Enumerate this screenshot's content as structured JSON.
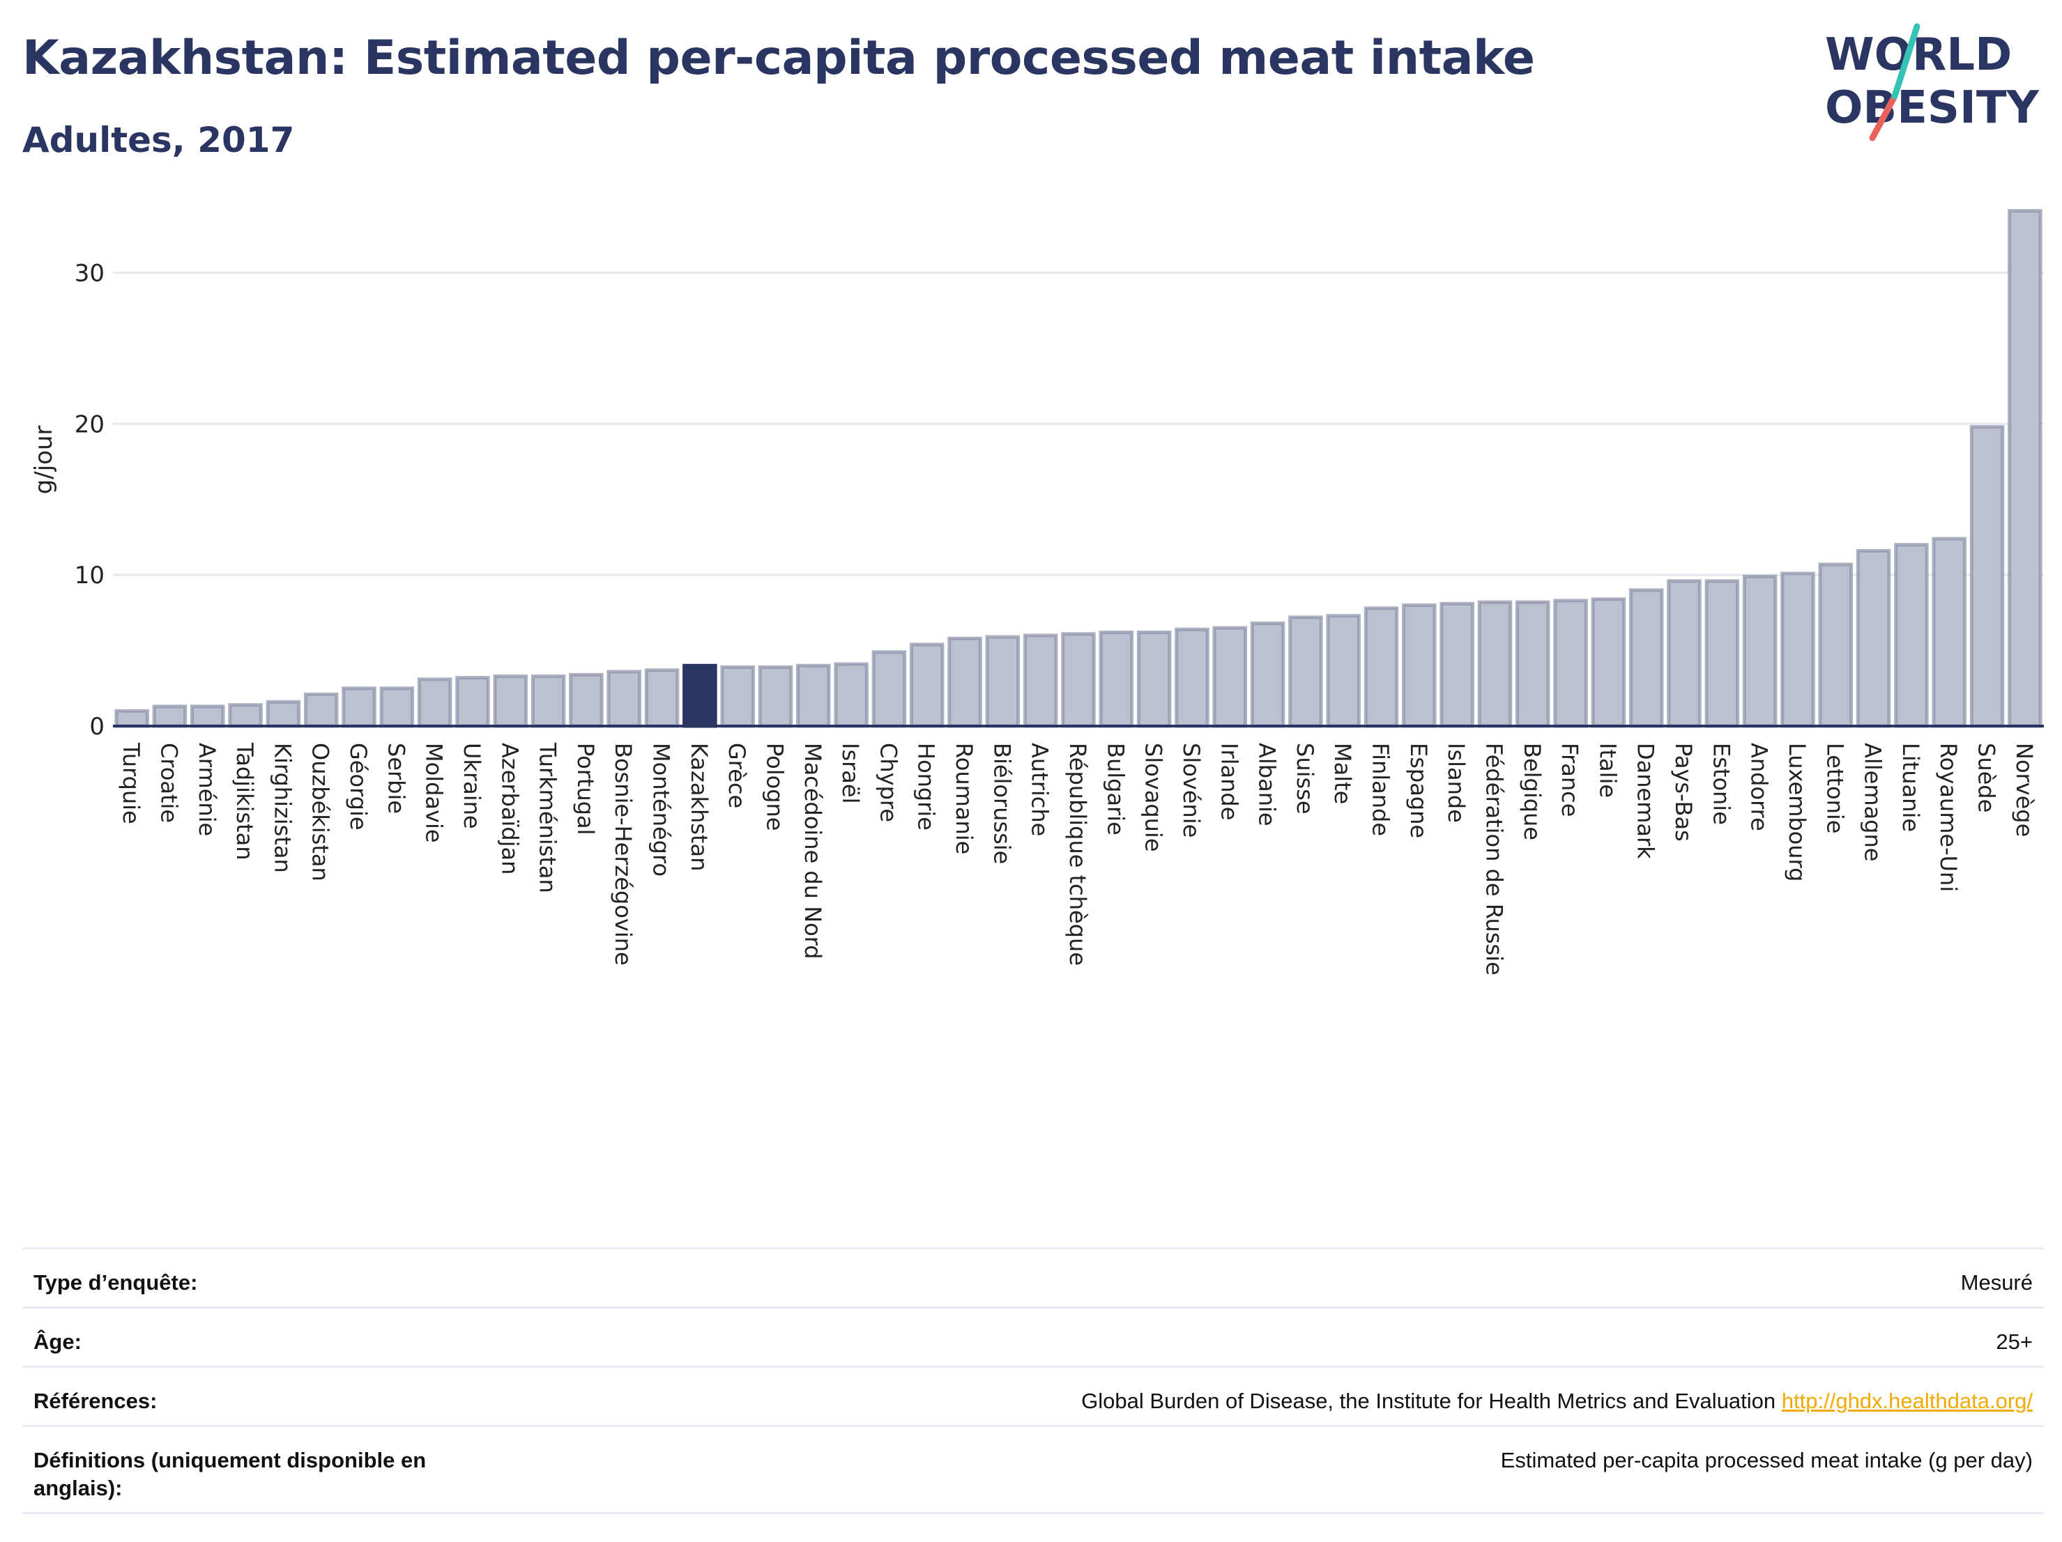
{
  "header": {
    "title": "Kazakhstan: Estimated per-capita processed meat intake",
    "subtitle": "Adultes, 2017",
    "logo_text_line1": "WORLD",
    "logo_text_line2": "OBESITY"
  },
  "colors": {
    "title": "#2b3561",
    "bar": "#bcc1d0",
    "bar_border": "#8a90a8",
    "highlight": "#2b3561",
    "grid": "#e6e8ee",
    "logo_teal": "#36c2b4",
    "logo_red": "#e8615a",
    "link": "#f2a900"
  },
  "chart_data": {
    "type": "bar",
    "ylabel": "g/jour",
    "ylim": [
      0,
      35
    ],
    "yticks": [
      0,
      10,
      20,
      30
    ],
    "grid": true,
    "highlight_category": "Kazakhstan",
    "categories": [
      "Turquie",
      "Croatie",
      "Arménie",
      "Tadjikistan",
      "Kirghizistan",
      "Ouzbékistan",
      "Géorgie",
      "Serbie",
      "Moldavie",
      "Ukraine",
      "Azerbaïdjan",
      "Turkménistan",
      "Portugal",
      "Bosnie-Herzégovine",
      "Monténégro",
      "Kazakhstan",
      "Grèce",
      "Pologne",
      "Macédoine du Nord",
      "Israël",
      "Chypre",
      "Hongrie",
      "Roumanie",
      "Biélorussie",
      "Autriche",
      "République tchèque",
      "Bulgarie",
      "Slovaquie",
      "Slovénie",
      "Irlande",
      "Albanie",
      "Suisse",
      "Malte",
      "Finlande",
      "Espagne",
      "Islande",
      "Fédération de Russie",
      "Belgique",
      "France",
      "Italie",
      "Danemark",
      "Pays-Bas",
      "Estonie",
      "Andorre",
      "Luxembourg",
      "Lettonie",
      "Allemagne",
      "Lituanie",
      "Royaume-Uni",
      "Suède",
      "Norvège"
    ],
    "values": [
      1.0,
      1.3,
      1.3,
      1.4,
      1.6,
      2.1,
      2.5,
      2.5,
      3.1,
      3.2,
      3.3,
      3.3,
      3.4,
      3.6,
      3.7,
      4.0,
      3.9,
      3.9,
      4.0,
      4.1,
      4.9,
      5.4,
      5.8,
      5.9,
      6.0,
      6.1,
      6.2,
      6.2,
      6.4,
      6.5,
      6.8,
      7.2,
      7.3,
      7.8,
      8.0,
      8.1,
      8.2,
      8.2,
      8.3,
      8.4,
      9.0,
      9.6,
      9.6,
      9.9,
      10.1,
      10.7,
      11.6,
      12.0,
      12.4,
      19.8,
      34.1
    ]
  },
  "details": [
    {
      "label": "Type d’enquête:",
      "value": "Mesuré"
    },
    {
      "label": "Âge:",
      "value": "25+"
    },
    {
      "label": "Références:",
      "value": "Global Burden of Disease, the Institute for Health Metrics and Evaluation",
      "link": "http://ghdx.healthdata.org/"
    },
    {
      "label": "Définitions (uniquement disponible en anglais):",
      "value": "Estimated per-capita processed meat intake (g per day)"
    }
  ]
}
